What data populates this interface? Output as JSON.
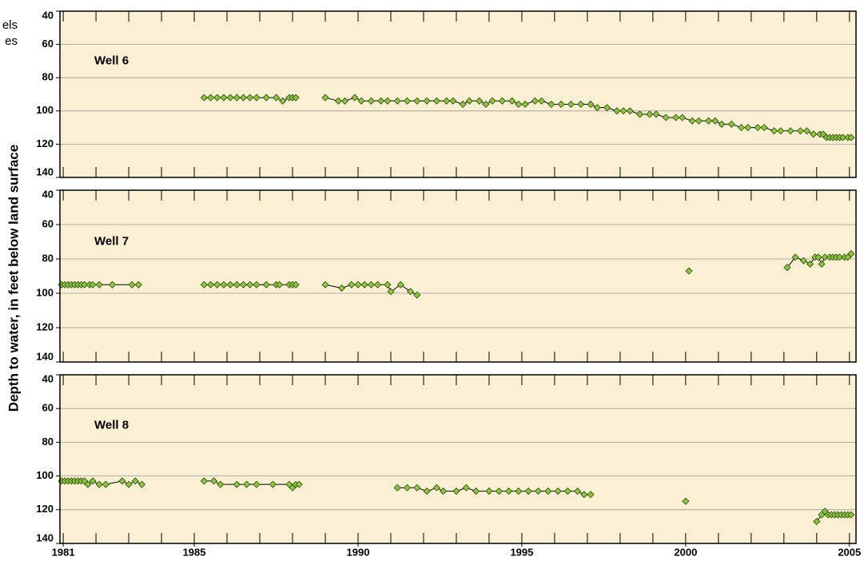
{
  "ylabel": "Depth to water, in feet below land surface",
  "annotations": [
    "els",
    "es"
  ],
  "chart_data": [
    {
      "type": "line",
      "title": "Well 6",
      "xlim": [
        1980.9,
        2005.2
      ],
      "ylim": [
        40,
        140
      ],
      "yinvert": true,
      "yticks": [
        40,
        60,
        80,
        100,
        120,
        140
      ],
      "grid": true,
      "background": "#fcf0d4",
      "color": "#8cc63e",
      "xminorticks": [
        1981,
        1982,
        1983,
        1984,
        1985,
        1986,
        1987,
        1988,
        1989,
        1990,
        1991,
        1992,
        1993,
        1994,
        1995,
        1996,
        1997,
        1998,
        1999,
        2000,
        2001,
        2002,
        2003,
        2004,
        2005
      ],
      "x": [
        1985.3,
        1985.5,
        1985.7,
        1985.9,
        1986.1,
        1986.3,
        1986.5,
        1986.7,
        1986.9,
        1987.2,
        1987.5,
        1987.7,
        1987.9,
        1988.0,
        1988.1,
        null,
        1989.0,
        1989.4,
        1989.6,
        1989.9,
        1990.1,
        1990.4,
        1990.7,
        1990.9,
        1991.2,
        1991.5,
        1991.8,
        1992.1,
        1992.4,
        1992.7,
        1992.9,
        1993.2,
        1993.4,
        1993.7,
        1993.9,
        1994.1,
        1994.4,
        1994.7,
        1994.9,
        1995.1,
        1995.4,
        1995.6,
        1995.9,
        1996.2,
        1996.5,
        1996.8,
        1997.1,
        1997.3,
        1997.6,
        1997.9,
        1998.1,
        1998.3,
        1998.6,
        1998.9,
        1999.1,
        1999.4,
        1999.7,
        1999.9,
        2000.2,
        2000.4,
        2000.7,
        2000.9,
        2001.1,
        2001.4,
        2001.7,
        2001.9,
        2002.2,
        2002.4,
        2002.7,
        2002.9,
        2003.2,
        2003.5,
        2003.7,
        2003.9,
        2004.1,
        2004.2,
        2004.3,
        2004.4,
        2004.5,
        2004.6,
        2004.7,
        2004.8,
        2004.95,
        2005.05
      ],
      "values": [
        92,
        92,
        92,
        92,
        92,
        92,
        92,
        92,
        92,
        92,
        92,
        94,
        92,
        92,
        92,
        null,
        92,
        94,
        94,
        92,
        94,
        94,
        94,
        94,
        94,
        94,
        94,
        94,
        94,
        94,
        94,
        96,
        94,
        94,
        96,
        94,
        94,
        94,
        96,
        96,
        94,
        94,
        96,
        96,
        96,
        96,
        96,
        98,
        98,
        100,
        100,
        100,
        102,
        102,
        102,
        104,
        104,
        104,
        106,
        106,
        106,
        106,
        108,
        108,
        110,
        110,
        110,
        110,
        112,
        112,
        112,
        112,
        112,
        114,
        114,
        114,
        116,
        116,
        116,
        116,
        116,
        116,
        116,
        116
      ]
    },
    {
      "type": "line",
      "title": "Well 7",
      "xlim": [
        1980.9,
        2005.2
      ],
      "ylim": [
        40,
        140
      ],
      "yinvert": true,
      "yticks": [
        40,
        60,
        80,
        100,
        120,
        140
      ],
      "grid": true,
      "background": "#fcf0d4",
      "color": "#8cc63e",
      "xminorticks": [
        1981,
        1982,
        1983,
        1984,
        1985,
        1986,
        1987,
        1988,
        1989,
        1990,
        1991,
        1992,
        1993,
        1994,
        1995,
        1996,
        1997,
        1998,
        1999,
        2000,
        2001,
        2002,
        2003,
        2004,
        2005
      ],
      "x": [
        1980.95,
        1981.05,
        1981.15,
        1981.25,
        1981.35,
        1981.45,
        1981.55,
        1981.65,
        1981.8,
        1981.9,
        1982.1,
        1982.5,
        1983.1,
        1983.3,
        null,
        1985.3,
        1985.5,
        1985.7,
        1985.9,
        1986.1,
        1986.3,
        1986.5,
        1986.7,
        1986.9,
        1987.2,
        1987.5,
        1987.6,
        1987.9,
        1988.0,
        1988.1,
        null,
        1989.0,
        1989.5,
        1989.8,
        1990.0,
        1990.2,
        1990.4,
        1990.6,
        1990.9,
        1991.0,
        1991.3,
        1991.6,
        1991.8,
        null,
        2000.1,
        null,
        2003.1,
        2003.35,
        2003.6,
        2003.8,
        2003.95,
        2004.05,
        2004.15,
        2004.25,
        2004.4,
        2004.5,
        2004.6,
        2004.7,
        2004.85,
        2004.95,
        2005.05
      ],
      "values": [
        95,
        95,
        95,
        95,
        95,
        95,
        95,
        95,
        95,
        95,
        95,
        95,
        95,
        95,
        null,
        95,
        95,
        95,
        95,
        95,
        95,
        95,
        95,
        95,
        95,
        95,
        95,
        95,
        95,
        95,
        null,
        95,
        97,
        95,
        95,
        95,
        95,
        95,
        95,
        99,
        95,
        99,
        101,
        null,
        87,
        null,
        85,
        79,
        81,
        83,
        79,
        79,
        83,
        79,
        79,
        79,
        79,
        79,
        79,
        79,
        77
      ]
    },
    {
      "type": "line",
      "title": "Well 8",
      "xlim": [
        1980.9,
        2005.2
      ],
      "ylim": [
        40,
        140
      ],
      "yinvert": true,
      "yticks": [
        40,
        60,
        80,
        100,
        120,
        140
      ],
      "grid": true,
      "background": "#fcf0d4",
      "color": "#8cc63e",
      "xminorticks": [
        1981,
        1982,
        1983,
        1984,
        1985,
        1986,
        1987,
        1988,
        1989,
        1990,
        1991,
        1992,
        1993,
        1994,
        1995,
        1996,
        1997,
        1998,
        1999,
        2000,
        2001,
        2002,
        2003,
        2004,
        2005
      ],
      "xticks": [
        1981,
        1985,
        1990,
        1995,
        2000,
        2005
      ],
      "x": [
        1980.95,
        1981.05,
        1981.15,
        1981.25,
        1981.35,
        1981.45,
        1981.55,
        1981.65,
        1981.75,
        1981.9,
        1982.1,
        1982.3,
        1982.8,
        1983.0,
        1983.2,
        1983.4,
        null,
        1985.3,
        1985.6,
        1985.8,
        1986.3,
        1986.6,
        1986.9,
        1987.4,
        1987.9,
        1988.0,
        1988.1,
        1988.2,
        null,
        1991.2,
        1991.5,
        1991.8,
        1992.1,
        1992.4,
        1992.6,
        1993.0,
        1993.3,
        1993.6,
        1994.0,
        1994.3,
        1994.6,
        1994.9,
        1995.2,
        1995.5,
        1995.8,
        1996.1,
        1996.4,
        1996.7,
        1996.9,
        1997.1,
        null,
        2000.0,
        null,
        2004.0,
        2004.15,
        2004.25,
        2004.35,
        2004.45,
        2004.55,
        2004.65,
        2004.75,
        2004.85,
        2004.95,
        2005.05
      ],
      "values": [
        103,
        103,
        103,
        103,
        103,
        103,
        103,
        103,
        105,
        103,
        105,
        105,
        103,
        105,
        103,
        105,
        null,
        103,
        103,
        105,
        105,
        105,
        105,
        105,
        105,
        107,
        105,
        105,
        null,
        107,
        107,
        107,
        109,
        107,
        109,
        109,
        107,
        109,
        109,
        109,
        109,
        109,
        109,
        109,
        109,
        109,
        109,
        109,
        111,
        111,
        null,
        115,
        null,
        127,
        123,
        121,
        123,
        123,
        123,
        123,
        123,
        123,
        123,
        123
      ]
    }
  ]
}
